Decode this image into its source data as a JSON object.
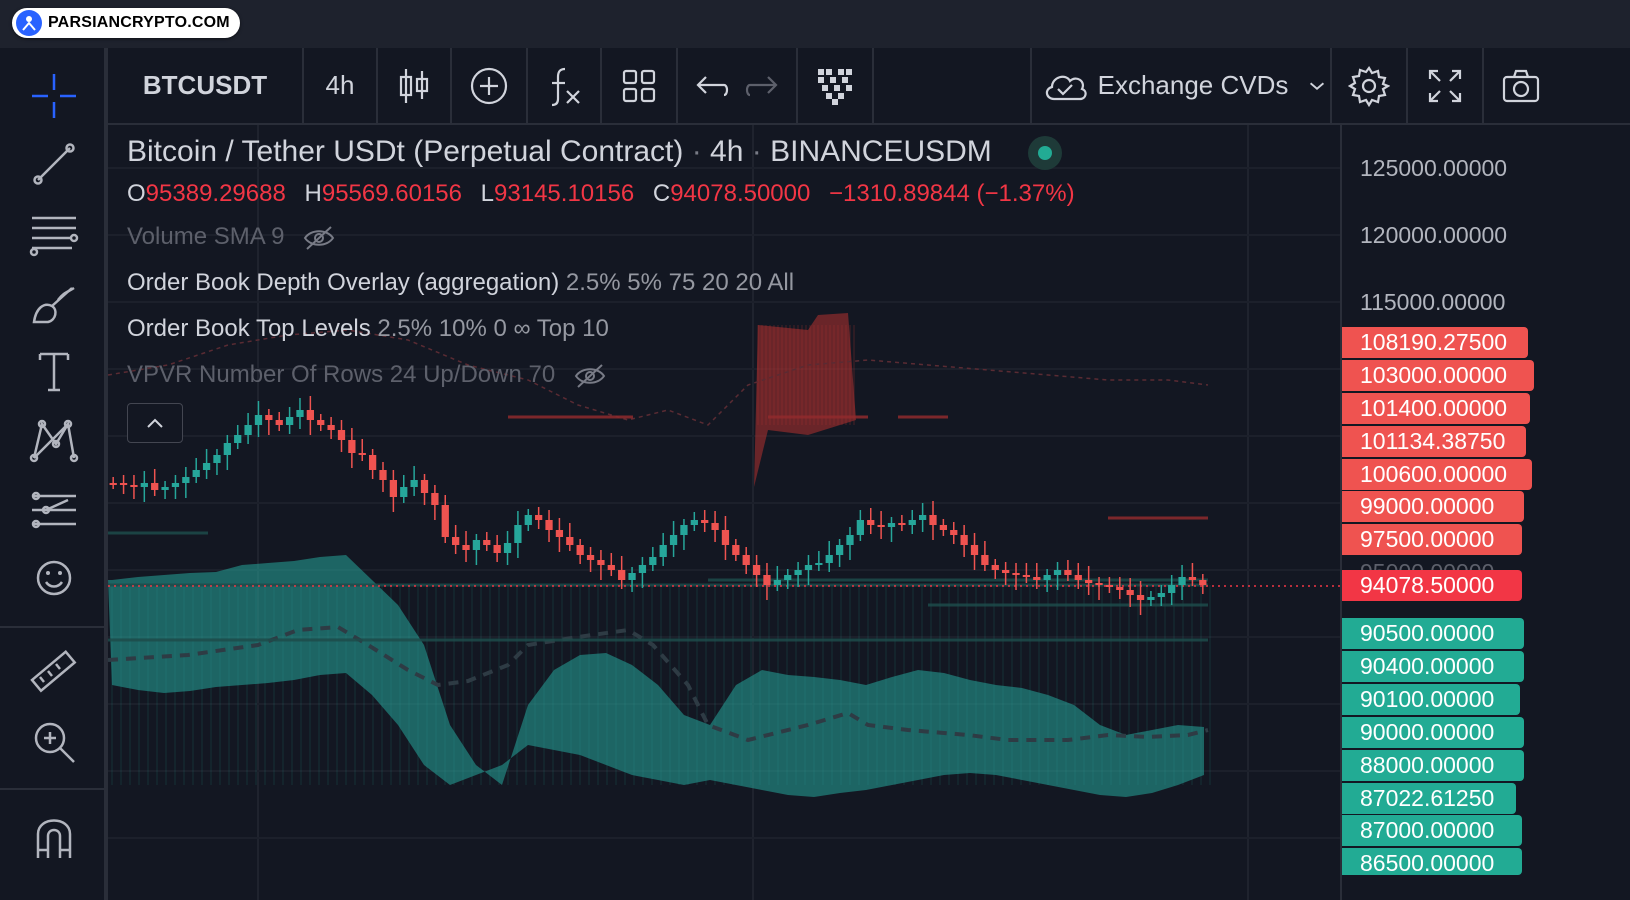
{
  "watermark": {
    "brand": "PARSIANCRYPTO.COM"
  },
  "toolbar": {
    "symbol": "BTCUSDT",
    "interval": "4h",
    "cvd_label": "Exchange CVDs"
  },
  "legend": {
    "title": "Bitcoin / Tether USDt (Perpetual Contract)",
    "title_sep1": "·",
    "interval": "4h",
    "title_sep2": "·",
    "exchange": "BINANCEUSDM",
    "ohlc": {
      "o_key": "O",
      "o": "95389.29688",
      "h_key": "H",
      "h": "95569.60156",
      "l_key": "L",
      "l": "93145.10156",
      "c_key": "C",
      "c": "94078.50000",
      "change": "−1310.89844 (−1.37%)"
    },
    "indicators": [
      {
        "name": "Volume SMA 9",
        "args": ""
      },
      {
        "name": "Order Book Depth Overlay (aggregation)",
        "args": "2.5% 5% 75 20 20 All"
      },
      {
        "name": "Order Book Top Levels",
        "args": "2.5% 10% 0 ∞ Top 10"
      },
      {
        "name": "VPVR Number Of Rows 24 Up/Down 70",
        "args": ""
      }
    ]
  },
  "price_scale": {
    "ticks": [
      "125000.00000",
      "120000.00000",
      "115000.00000"
    ],
    "ask_labels": [
      "108190.27500",
      "103000.00000",
      "101400.00000",
      "101134.38750",
      "100600.00000",
      "99000.00000",
      "97500.00000"
    ],
    "hidden_tick": "95000.00000",
    "last_price": "94078.50000",
    "bid_labels": [
      "90500.00000",
      "90400.00000",
      "90100.00000",
      "90000.00000",
      "88000.00000",
      "87022.61250",
      "87000.00000",
      "86500.00000"
    ]
  },
  "colors": {
    "up": "#26a69a",
    "down": "#ef5350",
    "bid_fill": "#26a69a",
    "ask_fill": "#b2312f",
    "last_price": "#f23645",
    "background": "#131722"
  }
}
